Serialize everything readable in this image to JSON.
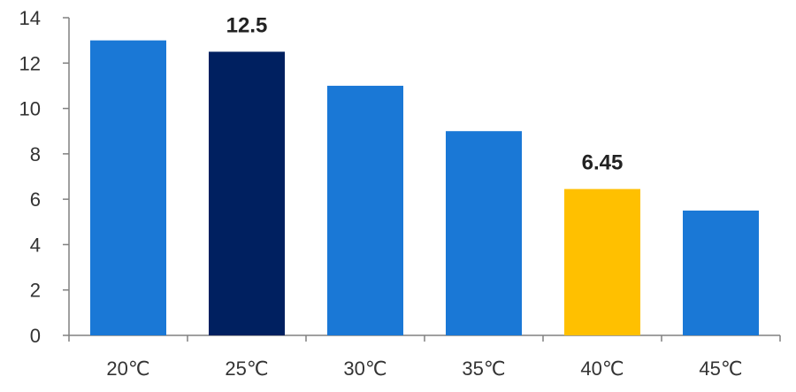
{
  "chart_data": {
    "type": "bar",
    "categories": [
      "20℃",
      "25℃",
      "30℃",
      "35℃",
      "40℃",
      "45℃"
    ],
    "values": [
      13,
      12.5,
      11,
      9,
      6.45,
      5.5
    ],
    "bar_colors": [
      "#1a78d6",
      "#002060",
      "#1a78d6",
      "#1a78d6",
      "#ffc000",
      "#1a78d6"
    ],
    "data_labels": [
      "",
      "12.5",
      "",
      "",
      "6.45",
      ""
    ],
    "ylim": [
      0,
      14
    ],
    "yticks": [
      0,
      2,
      4,
      6,
      8,
      10,
      12,
      14
    ],
    "title": "",
    "xlabel": "",
    "ylabel": "",
    "grid": false,
    "legend": "none"
  }
}
